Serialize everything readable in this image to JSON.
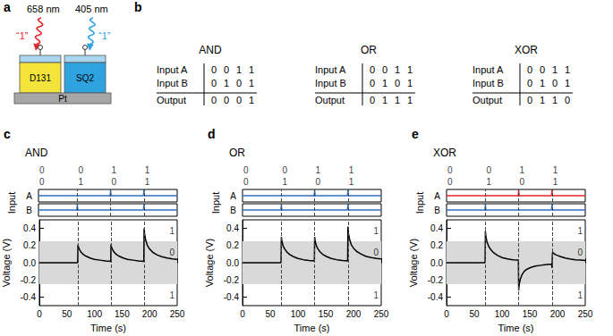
{
  "panel_a": {
    "letter": "a",
    "beams": [
      {
        "wavelength": "658 nm",
        "state": "“1”",
        "color": "#e8262b"
      },
      {
        "wavelength": "405 nm",
        "state": "“1”",
        "color": "#2ea3e0"
      }
    ],
    "layers": [
      "D131",
      "SQ2"
    ],
    "substrate": "Pt"
  },
  "panel_b": {
    "letter": "b",
    "tables": [
      {
        "title": "AND",
        "rows": [
          {
            "label": "Input A",
            "values": [
              "0",
              "0",
              "1",
              "1"
            ]
          },
          {
            "label": "Input B",
            "values": [
              "0",
              "1",
              "0",
              "1"
            ]
          },
          {
            "label": "Output",
            "values": [
              "0",
              "0",
              "0",
              "1"
            ]
          }
        ]
      },
      {
        "title": "OR",
        "rows": [
          {
            "label": "Input A",
            "values": [
              "0",
              "0",
              "1",
              "1"
            ]
          },
          {
            "label": "Input B",
            "values": [
              "0",
              "1",
              "0",
              "1"
            ]
          },
          {
            "label": "Output",
            "values": [
              "0",
              "1",
              "1",
              "1"
            ]
          }
        ]
      },
      {
        "title": "XOR",
        "rows": [
          {
            "label": "Input A",
            "values": [
              "0",
              "0",
              "1",
              "1"
            ]
          },
          {
            "label": "Input B",
            "values": [
              "0",
              "1",
              "0",
              "1"
            ]
          },
          {
            "label": "Output",
            "values": [
              "0",
              "1",
              "1",
              "0"
            ]
          }
        ]
      }
    ]
  },
  "chart_data": [
    {
      "type": "line",
      "panel": "c",
      "title": "AND",
      "states": {
        "A": [
          "0",
          "0",
          "1",
          "1"
        ],
        "B": [
          "0",
          "1",
          "0",
          "1"
        ]
      },
      "inputs_label": "Input",
      "input_ylim": [
        -1,
        1
      ],
      "inputs": [
        {
          "name": "A",
          "color": "#2f6fc0",
          "x": [
            0,
            129,
            130,
            131,
            189,
            190,
            191,
            250
          ],
          "values": [
            0,
            0,
            1,
            0,
            0,
            1,
            0,
            0
          ]
        },
        {
          "name": "B",
          "color": "#2f6fc0",
          "x": [
            0,
            69,
            70,
            71,
            189,
            190,
            191,
            250
          ],
          "values": [
            0,
            0,
            1,
            0,
            0,
            1,
            0,
            0
          ]
        }
      ],
      "events": [
        70,
        130,
        190
      ],
      "color": "#000000",
      "x": [
        0,
        69.5,
        70,
        71,
        73,
        76,
        80,
        85,
        92,
        100,
        110,
        120,
        129.5,
        130,
        131,
        133,
        136,
        140,
        145,
        152,
        160,
        170,
        180,
        189.5,
        190,
        191,
        193,
        196,
        200,
        206,
        214,
        222,
        232,
        242,
        250
      ],
      "values": [
        0,
        0,
        0.21,
        0.18,
        0.15,
        0.12,
        0.095,
        0.075,
        0.055,
        0.04,
        0.03,
        0.02,
        0.015,
        0.215,
        0.18,
        0.15,
        0.12,
        0.095,
        0.075,
        0.055,
        0.04,
        0.03,
        0.02,
        0.015,
        0.4,
        0.33,
        0.26,
        0.2,
        0.16,
        0.12,
        0.09,
        0.07,
        0.055,
        0.045,
        0.04
      ],
      "band": [
        -0.25,
        0.25
      ],
      "band_states": [
        "1",
        "0",
        "1"
      ],
      "xlim": [
        0,
        250
      ],
      "xticks": [
        0,
        50,
        100,
        150,
        200,
        250
      ],
      "ylim": [
        -0.5,
        0.5
      ],
      "yticks": [
        -0.4,
        -0.2,
        {
          "value": 0,
          "label": "0.0"
        },
        0.2,
        0.4
      ],
      "xlabel": "Time (s)",
      "ylabel": "Voltage (V)"
    },
    {
      "type": "line",
      "panel": "d",
      "title": "OR",
      "states": {
        "A": [
          "0",
          "0",
          "1",
          "1"
        ],
        "B": [
          "0",
          "1",
          "0",
          "1"
        ]
      },
      "inputs_label": "Input",
      "input_ylim": [
        -1,
        1
      ],
      "inputs": [
        {
          "name": "A",
          "color": "#2f6fc0",
          "x": [
            0,
            129,
            130,
            131,
            189,
            190,
            191,
            250
          ],
          "values": [
            0,
            0,
            1,
            0,
            0,
            1,
            0,
            0
          ]
        },
        {
          "name": "B",
          "color": "#2f6fc0",
          "x": [
            0,
            69,
            70,
            71,
            189,
            190,
            191,
            250
          ],
          "values": [
            0,
            0,
            1,
            0,
            0,
            1,
            0,
            0
          ]
        }
      ],
      "events": [
        70,
        130,
        190
      ],
      "color": "#000000",
      "x": [
        0,
        69.5,
        70,
        71,
        73,
        76,
        80,
        85,
        92,
        100,
        110,
        120,
        129.5,
        130,
        131,
        133,
        136,
        140,
        145,
        152,
        160,
        170,
        180,
        189.5,
        190,
        191,
        193,
        196,
        200,
        206,
        214,
        222,
        232,
        242,
        250
      ],
      "values": [
        0,
        0,
        0.3,
        0.25,
        0.2,
        0.16,
        0.125,
        0.095,
        0.07,
        0.05,
        0.035,
        0.025,
        0.02,
        0.3,
        0.25,
        0.2,
        0.16,
        0.125,
        0.095,
        0.07,
        0.05,
        0.035,
        0.025,
        0.02,
        0.42,
        0.34,
        0.27,
        0.21,
        0.17,
        0.13,
        0.1,
        0.075,
        0.06,
        0.05,
        0.045
      ],
      "band": [
        -0.25,
        0.25
      ],
      "band_states": [
        "1",
        "0",
        "1"
      ],
      "xlim": [
        0,
        250
      ],
      "xticks": [
        0,
        50,
        100,
        150,
        200,
        250
      ],
      "ylim": [
        -0.5,
        0.5
      ],
      "yticks": [
        -0.4,
        -0.2,
        {
          "value": 0,
          "label": "0.0"
        },
        0.2,
        0.4
      ],
      "xlabel": "Time (s)",
      "ylabel": "Voltage (V)"
    },
    {
      "type": "line",
      "panel": "e",
      "title": "XOR",
      "states": {
        "A": [
          "0",
          "0",
          "1",
          "1"
        ],
        "B": [
          "0",
          "1",
          "0",
          "1"
        ]
      },
      "inputs_label": "Input",
      "input_ylim": [
        -1,
        1
      ],
      "inputs": [
        {
          "name": "A",
          "color": "#e8262b",
          "x": [
            0,
            129,
            130,
            131,
            189,
            190,
            191,
            250
          ],
          "values": [
            0,
            0,
            1,
            0,
            0,
            1,
            0,
            0
          ]
        },
        {
          "name": "B",
          "color": "#2f6fc0",
          "x": [
            0,
            69,
            70,
            71,
            189,
            190,
            191,
            250
          ],
          "values": [
            0,
            0,
            1,
            0,
            0,
            1,
            0,
            0
          ]
        }
      ],
      "events": [
        70,
        130,
        190
      ],
      "color": "#000000",
      "x": [
        0,
        69.5,
        70,
        71,
        73,
        76,
        80,
        85,
        92,
        100,
        110,
        120,
        129.5,
        130,
        131,
        133,
        136,
        140,
        145,
        152,
        160,
        170,
        180,
        189.5,
        190,
        191,
        193,
        196,
        200,
        206,
        214,
        222,
        232,
        242,
        250
      ],
      "values": [
        0,
        0,
        0.37,
        0.3,
        0.24,
        0.19,
        0.15,
        0.115,
        0.085,
        0.06,
        0.045,
        0.035,
        0.03,
        -0.32,
        -0.25,
        -0.19,
        -0.14,
        -0.1,
        -0.075,
        -0.055,
        -0.04,
        -0.03,
        -0.02,
        -0.015,
        -0.06,
        0.12,
        0.11,
        0.095,
        0.085,
        0.07,
        0.055,
        0.045,
        0.035,
        0.03,
        0.025
      ],
      "band": [
        -0.25,
        0.25
      ],
      "band_states": [
        "1",
        "0",
        "1"
      ],
      "xlim": [
        0,
        250
      ],
      "xticks": [
        0,
        50,
        100,
        150,
        200,
        250
      ],
      "ylim": [
        -0.5,
        0.5
      ],
      "yticks": [
        -0.4,
        -0.2,
        {
          "value": 0,
          "label": "0.0"
        },
        0.2,
        0.4
      ],
      "xlabel": "Time (s)",
      "ylabel": "Voltage (V)"
    }
  ]
}
